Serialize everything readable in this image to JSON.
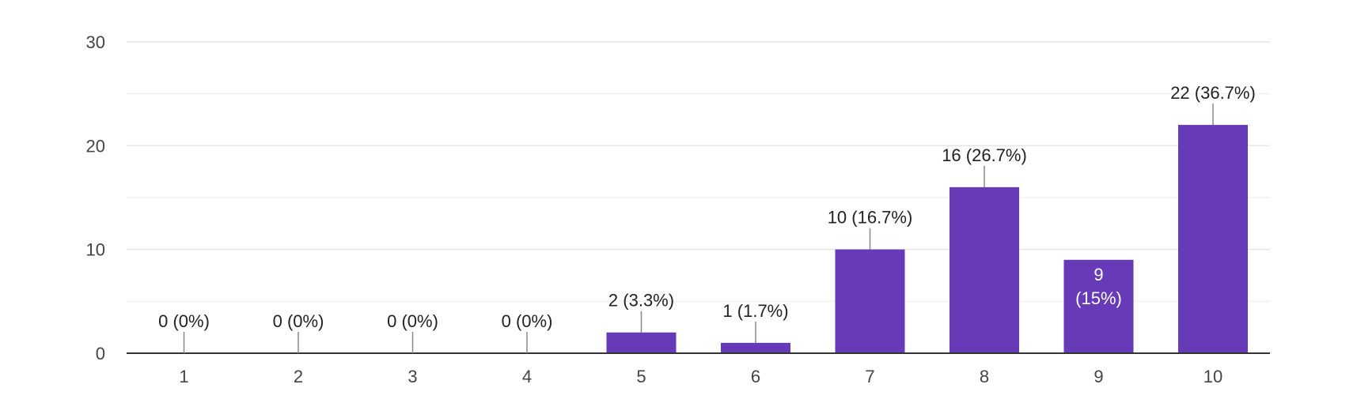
{
  "chart_data": {
    "type": "bar",
    "categories": [
      "1",
      "2",
      "3",
      "4",
      "5",
      "6",
      "7",
      "8",
      "9",
      "10"
    ],
    "values": [
      0,
      0,
      0,
      0,
      2,
      1,
      10,
      16,
      9,
      22
    ],
    "data_labels": [
      "0 (0%)",
      "0 (0%)",
      "0 (0%)",
      "0 (0%)",
      "2 (3.3%)",
      "1 (1.7%)",
      "10 (16.7%)",
      "16 (26.7%)",
      "9 (15%)",
      "22 (36.7%)"
    ],
    "inside_label_lines": {
      "8": [
        "9",
        "(15%)"
      ]
    },
    "yticks": [
      "0",
      "10",
      "20",
      "30"
    ],
    "ylim": [
      0,
      30
    ],
    "grid": true,
    "bar_color": "#673ab7",
    "title": "",
    "xlabel": "",
    "ylabel": ""
  }
}
